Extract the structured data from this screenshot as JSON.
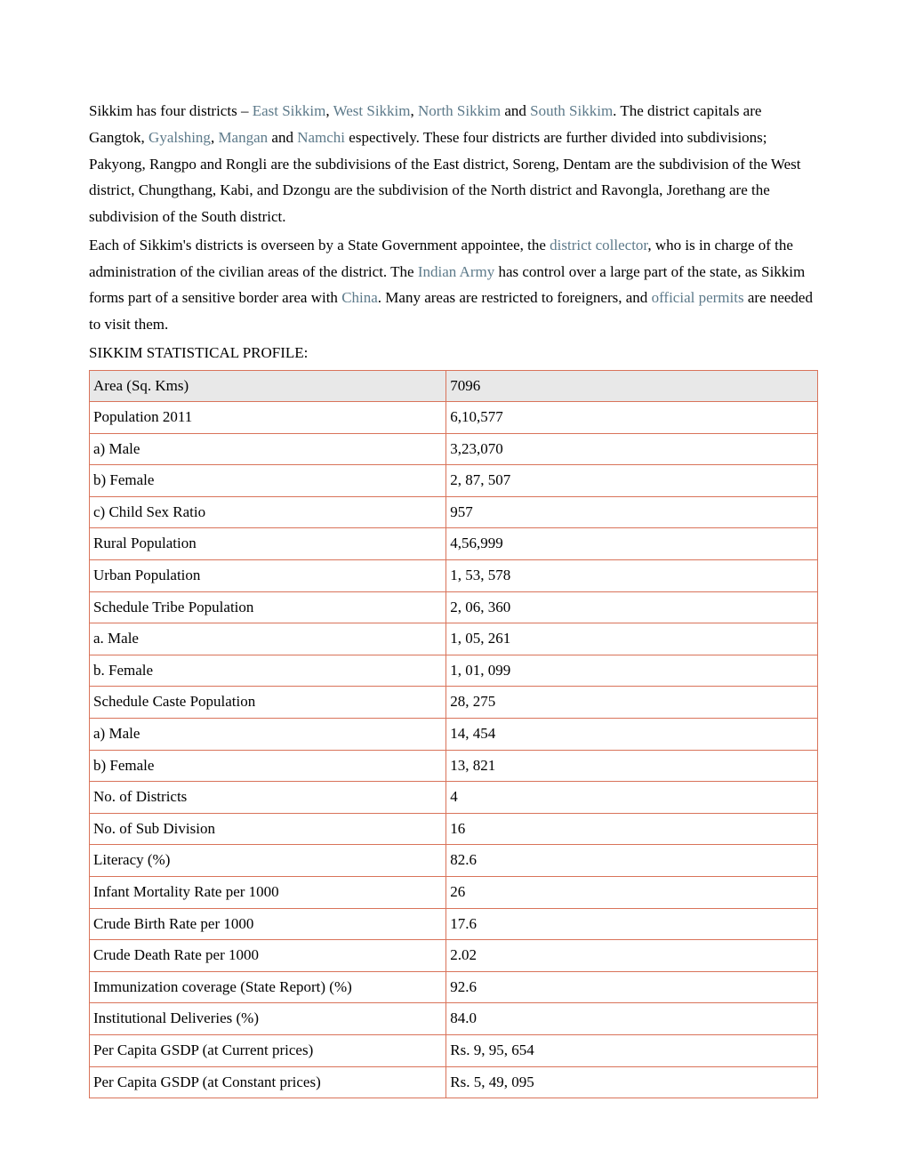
{
  "paragraph1": {
    "parts": [
      {
        "text": "Sikkim has four districts – ",
        "link": false
      },
      {
        "text": "East Sikkim",
        "link": true
      },
      {
        "text": ", ",
        "link": false
      },
      {
        "text": "West Sikkim",
        "link": true
      },
      {
        "text": ", ",
        "link": false
      },
      {
        "text": "North Sikkim",
        "link": true
      },
      {
        "text": " and ",
        "link": false
      },
      {
        "text": "South Sikkim",
        "link": true
      },
      {
        "text": ". The district capitals are Gangtok, ",
        "link": false
      },
      {
        "text": "Gyalshing",
        "link": true
      },
      {
        "text": ", ",
        "link": false
      },
      {
        "text": "Mangan",
        "link": true
      },
      {
        "text": " and ",
        "link": false
      },
      {
        "text": "Namchi",
        "link": true
      },
      {
        "text": " espectively. These four districts are further divided into subdivisions; Pakyong, Rangpo and Rongli are the subdivisions of the East district, Soreng, Dentam are the subdivision of the West district, Chungthang, Kabi, and Dzongu are the subdivision of the North district and Ravongla, Jorethang are the subdivision of the South district.",
        "link": false
      }
    ]
  },
  "paragraph2": {
    "parts": [
      {
        "text": "Each of Sikkim's districts is overseen by a State Government appointee, the ",
        "link": false
      },
      {
        "text": "district collector",
        "link": true
      },
      {
        "text": ", who is in charge of the administration of the civilian areas of the district. The ",
        "link": false
      },
      {
        "text": "Indian Army",
        "link": true
      },
      {
        "text": " has control over a large part of the state, as Sikkim forms part of a sensitive border area with ",
        "link": false
      },
      {
        "text": "China",
        "link": true
      },
      {
        "text": ". Many areas are restricted to foreigners, and ",
        "link": false
      },
      {
        "text": "official permits",
        "link": true
      },
      {
        "text": " are needed to visit them.",
        "link": false
      }
    ]
  },
  "tableTitle": "SIKKIM STATISTICAL PROFILE:",
  "links": {
    "color": "#5d7a8a"
  },
  "table": {
    "border_color": "#d9735a",
    "header_bg": "#e8e8e8",
    "rows": [
      {
        "label": "Area (Sq. Kms)",
        "value": "7096",
        "header": true
      },
      {
        "label": "Population 2011",
        "value": "6,10,577",
        "header": false
      },
      {
        "label": "a) Male",
        "value": "3,23,070",
        "header": false
      },
      {
        "label": "b) Female",
        "value": "2, 87, 507",
        "header": false
      },
      {
        "label": "c) Child Sex Ratio",
        "value": "957",
        "header": false
      },
      {
        "label": "Rural Population",
        "value": "4,56,999",
        "header": false
      },
      {
        "label": "Urban Population",
        "value": "1, 53, 578",
        "header": false
      },
      {
        "label": "Schedule Tribe Population",
        "value": "2, 06, 360",
        "header": false
      },
      {
        "label": "a. Male",
        "value": "1, 05, 261",
        "header": false
      },
      {
        "label": "b. Female",
        "value": "1, 01, 099",
        "header": false
      },
      {
        "label": "Schedule Caste Population",
        "value": "28, 275",
        "header": false
      },
      {
        "label": "a) Male",
        "value": "14, 454",
        "header": false
      },
      {
        "label": "b) Female",
        "value": "13, 821",
        "header": false
      },
      {
        "label": "No. of Districts",
        "value": "4",
        "header": false
      },
      {
        "label": "No. of Sub Division",
        "value": "16",
        "header": false
      },
      {
        "label": "Literacy (%)",
        "value": "82.6",
        "header": false
      },
      {
        "label": "Infant Mortality Rate per 1000",
        "value": "26",
        "header": false
      },
      {
        "label": "Crude Birth Rate per 1000",
        "value": "17.6",
        "header": false
      },
      {
        "label": "Crude Death Rate per 1000",
        "value": "2.02",
        "header": false
      },
      {
        "label": "Immunization coverage (State Report) (%)",
        "value": "92.6",
        "header": false
      },
      {
        "label": "Institutional Deliveries (%)",
        "value": "84.0",
        "header": false
      },
      {
        "label": "Per Capita GSDP (at Current prices)",
        "value": "Rs. 9, 95, 654",
        "header": false
      },
      {
        "label": "Per Capita GSDP (at Constant prices)",
        "value": "Rs. 5, 49, 095",
        "header": false
      }
    ]
  }
}
